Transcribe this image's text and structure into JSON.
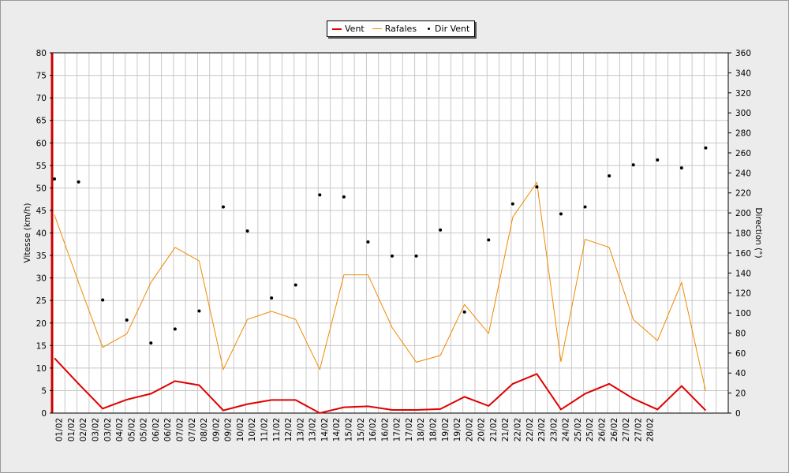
{
  "chart_data": {
    "type": "line",
    "categories": [
      "01/02",
      "01/02",
      "02/02",
      "03/02",
      "03/02",
      "04/02",
      "05/02",
      "05/02",
      "06/02",
      "06/02",
      "07/02",
      "07/02",
      "08/02",
      "09/02",
      "09/02",
      "10/02",
      "10/02",
      "11/02",
      "11/02",
      "12/02",
      "13/02",
      "13/02",
      "14/02",
      "14/02",
      "15/02",
      "15/02",
      "16/02",
      "16/02",
      "17/02",
      "17/02",
      "18/02",
      "18/02",
      "19/02",
      "19/02",
      "20/02",
      "20/02",
      "21/02",
      "21/02",
      "22/02",
      "22/02",
      "23/02",
      "23/02",
      "24/02",
      "25/02",
      "25/02",
      "26/02",
      "26/02",
      "27/02",
      "27/02",
      "28/02"
    ],
    "xlabel": "",
    "ylabel": "Vitesse (km/h)",
    "ylim": [
      0,
      80
    ],
    "y2label": "Direction (°)",
    "y2lim": [
      0,
      360
    ],
    "yticks": [
      "0",
      "5",
      "10",
      "15",
      "20",
      "25",
      "30",
      "35",
      "40",
      "45",
      "50",
      "55",
      "60",
      "65",
      "70",
      "75",
      "80"
    ],
    "y2ticks": [
      "0",
      "20",
      "40",
      "60",
      "80",
      "100",
      "120",
      "140",
      "160",
      "180",
      "200",
      "220",
      "240",
      "260",
      "280",
      "300",
      "320",
      "340",
      "360"
    ],
    "grid": true,
    "legend_position": "top-center",
    "series": [
      {
        "name": "Vent",
        "color": "#e00000",
        "style": "line",
        "axis": "left",
        "points": [
          [
            0,
            12.2
          ],
          [
            2,
            6.5
          ],
          [
            4,
            1.0
          ],
          [
            6,
            3.0
          ],
          [
            8,
            4.3
          ],
          [
            10,
            7.1
          ],
          [
            12,
            6.2
          ],
          [
            14,
            0.6
          ],
          [
            16,
            2.0
          ],
          [
            18,
            2.9
          ],
          [
            20,
            2.9
          ],
          [
            22,
            0.0
          ],
          [
            24,
            1.3
          ],
          [
            26,
            1.5
          ],
          [
            28,
            0.7
          ],
          [
            30,
            0.7
          ],
          [
            32,
            0.9
          ],
          [
            34,
            3.6
          ],
          [
            36,
            1.6
          ],
          [
            38,
            6.5
          ],
          [
            40,
            8.7
          ],
          [
            42,
            0.8
          ],
          [
            44,
            4.3
          ],
          [
            46,
            6.5
          ],
          [
            48,
            3.2
          ],
          [
            50,
            0.8
          ],
          [
            52,
            6.0
          ],
          [
            54,
            0.6
          ]
        ]
      },
      {
        "name": "Rafales",
        "color": "#f08a00",
        "style": "line",
        "axis": "left",
        "points": [
          [
            0,
            44.0
          ],
          [
            2,
            29.0
          ],
          [
            4,
            14.6
          ],
          [
            6,
            17.6
          ],
          [
            8,
            29.0
          ],
          [
            10,
            36.8
          ],
          [
            12,
            33.8
          ],
          [
            14,
            9.7
          ],
          [
            16,
            20.8
          ],
          [
            18,
            22.6
          ],
          [
            20,
            20.8
          ],
          [
            22,
            9.7
          ],
          [
            24,
            30.7
          ],
          [
            26,
            30.7
          ],
          [
            28,
            19.0
          ],
          [
            30,
            11.3
          ],
          [
            32,
            12.8
          ],
          [
            34,
            24.1
          ],
          [
            36,
            17.7
          ],
          [
            38,
            43.5
          ],
          [
            40,
            51.2
          ],
          [
            42,
            11.4
          ],
          [
            44,
            38.6
          ],
          [
            46,
            36.8
          ],
          [
            48,
            20.8
          ],
          [
            50,
            16.1
          ],
          [
            52,
            29.0
          ],
          [
            54,
            4.9
          ]
        ]
      },
      {
        "name": "Dir Vent",
        "color": "#000000",
        "style": "points",
        "axis": "right",
        "points": [
          [
            0,
            234
          ],
          [
            2,
            231
          ],
          [
            4,
            113
          ],
          [
            6,
            93
          ],
          [
            8,
            70
          ],
          [
            10,
            84
          ],
          [
            12,
            102
          ],
          [
            14,
            206
          ],
          [
            16,
            182
          ],
          [
            18,
            115
          ],
          [
            20,
            128
          ],
          [
            22,
            218
          ],
          [
            24,
            216
          ],
          [
            26,
            171
          ],
          [
            28,
            157
          ],
          [
            30,
            157
          ],
          [
            32,
            183
          ],
          [
            34,
            101
          ],
          [
            36,
            173
          ],
          [
            38,
            209
          ],
          [
            40,
            226
          ],
          [
            42,
            199
          ],
          [
            44,
            206
          ],
          [
            46,
            237
          ],
          [
            48,
            248
          ],
          [
            50,
            253
          ],
          [
            52,
            245
          ],
          [
            54,
            265
          ]
        ]
      }
    ]
  }
}
